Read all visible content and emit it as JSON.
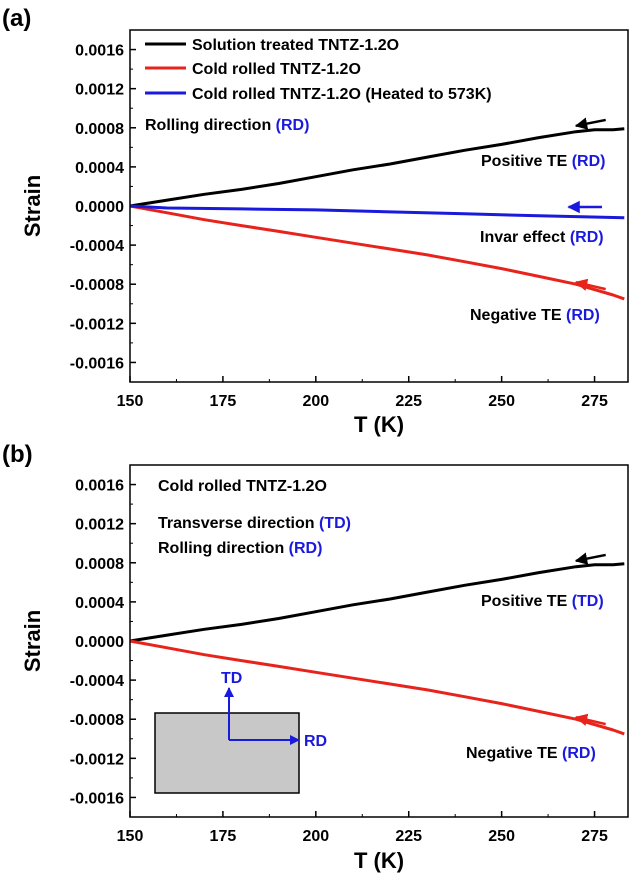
{
  "colors": {
    "black": "#000000",
    "red": "#e8231c",
    "blue": "#1a1adc",
    "inset_fill": "#c8c8c8"
  },
  "chart_data": [
    {
      "panel_label": "(a)",
      "type": "line",
      "xlabel": "T (K)",
      "ylabel": "Strain",
      "xlim": [
        150,
        284
      ],
      "ylim": [
        -0.0018,
        0.0018
      ],
      "xticks": [
        "150",
        "175",
        "200",
        "225",
        "250",
        "275"
      ],
      "yticks": [
        "0.0016",
        "0.0012",
        "0.0008",
        "0.0004",
        "0.0000",
        "-0.0004",
        "-0.0008",
        "-0.0012",
        "-0.0016"
      ],
      "legend_position": "top-left",
      "series": [
        {
          "name": "Solution treated TNTZ-1.2O",
          "color": "black",
          "x": [
            150,
            160,
            170,
            180,
            190,
            200,
            210,
            220,
            230,
            240,
            250,
            260,
            270,
            275,
            280,
            283
          ],
          "y": [
            0.0,
            6e-05,
            0.00012,
            0.00017,
            0.00023,
            0.0003,
            0.00037,
            0.00043,
            0.0005,
            0.00057,
            0.00063,
            0.0007,
            0.00076,
            0.00078,
            0.00078,
            0.00079
          ]
        },
        {
          "name": "Cold rolled TNTZ-1.2O",
          "color": "red",
          "x": [
            150,
            160,
            170,
            180,
            190,
            200,
            210,
            220,
            230,
            240,
            250,
            260,
            270,
            280,
            283
          ],
          "y": [
            0.0,
            -7e-05,
            -0.00014,
            -0.0002,
            -0.00026,
            -0.00032,
            -0.00038,
            -0.00044,
            -0.0005,
            -0.00057,
            -0.00064,
            -0.00072,
            -0.0008,
            -0.00091,
            -0.00095
          ]
        },
        {
          "name": "Cold rolled TNTZ-1.2O (Heated to 573K)",
          "color": "blue",
          "x": [
            150,
            160,
            180,
            200,
            220,
            240,
            260,
            283
          ],
          "y": [
            0.0,
            -2e-05,
            -3e-05,
            -4e-05,
            -6e-05,
            -8e-05,
            -0.0001,
            -0.00012
          ]
        }
      ],
      "annotations": {
        "direction_prefix": "Rolling direction ",
        "direction_suffix": "(RD)",
        "positive_prefix": "Positive TE ",
        "positive_suffix": "(RD)",
        "invar_prefix": "Invar effect ",
        "invar_suffix": "(RD)",
        "negative_prefix": "Negative TE ",
        "negative_suffix": "(RD)"
      },
      "arrows": [
        {
          "color": "black",
          "x1": 278,
          "y1": 0.00088,
          "x2": 270,
          "y2": 0.00082
        },
        {
          "color": "blue",
          "x1": 277,
          "y1": -1e-05,
          "x2": 268,
          "y2": -1e-05
        },
        {
          "color": "red",
          "x1": 278,
          "y1": -0.00085,
          "x2": 270,
          "y2": -0.00078
        }
      ]
    },
    {
      "panel_label": "(b)",
      "type": "line",
      "xlabel": "T (K)",
      "ylabel": "Strain",
      "xlim": [
        150,
        284
      ],
      "ylim": [
        -0.0018,
        0.0018
      ],
      "xticks": [
        "150",
        "175",
        "200",
        "225",
        "250",
        "275"
      ],
      "yticks": [
        "0.0016",
        "0.0012",
        "0.0008",
        "0.0004",
        "0.0000",
        "-0.0004",
        "-0.0008",
        "-0.0012",
        "-0.0016"
      ],
      "series": [
        {
          "name": "",
          "color": "black",
          "x": [
            150,
            160,
            170,
            180,
            190,
            200,
            210,
            220,
            230,
            240,
            250,
            260,
            270,
            275,
            280,
            283
          ],
          "y": [
            0.0,
            6e-05,
            0.00012,
            0.00017,
            0.00023,
            0.0003,
            0.00037,
            0.00043,
            0.0005,
            0.00057,
            0.00063,
            0.0007,
            0.00076,
            0.00078,
            0.00078,
            0.00079
          ]
        },
        {
          "name": "",
          "color": "red",
          "x": [
            150,
            160,
            170,
            180,
            190,
            200,
            210,
            220,
            230,
            240,
            250,
            260,
            270,
            280,
            283
          ],
          "y": [
            0.0,
            -7e-05,
            -0.00014,
            -0.0002,
            -0.00026,
            -0.00032,
            -0.00038,
            -0.00044,
            -0.0005,
            -0.00057,
            -0.00064,
            -0.00072,
            -0.0008,
            -0.00091,
            -0.00095
          ]
        }
      ],
      "annotations": {
        "sample": "Cold rolled TNTZ-1.2O",
        "transverse_prefix": "Transverse direction ",
        "transverse_suffix": "(TD)",
        "rolling_prefix": "Rolling direction ",
        "rolling_suffix": "(RD)",
        "positive_prefix": "Positive TE ",
        "positive_suffix": "(TD)",
        "negative_prefix": "Negative TE ",
        "negative_suffix": "(RD)",
        "inset_td": "TD",
        "inset_rd": "RD"
      },
      "arrows": [
        {
          "color": "black",
          "x1": 278,
          "y1": 0.00088,
          "x2": 270,
          "y2": 0.00082
        },
        {
          "color": "red",
          "x1": 278,
          "y1": -0.00085,
          "x2": 270,
          "y2": -0.00078
        }
      ]
    }
  ]
}
